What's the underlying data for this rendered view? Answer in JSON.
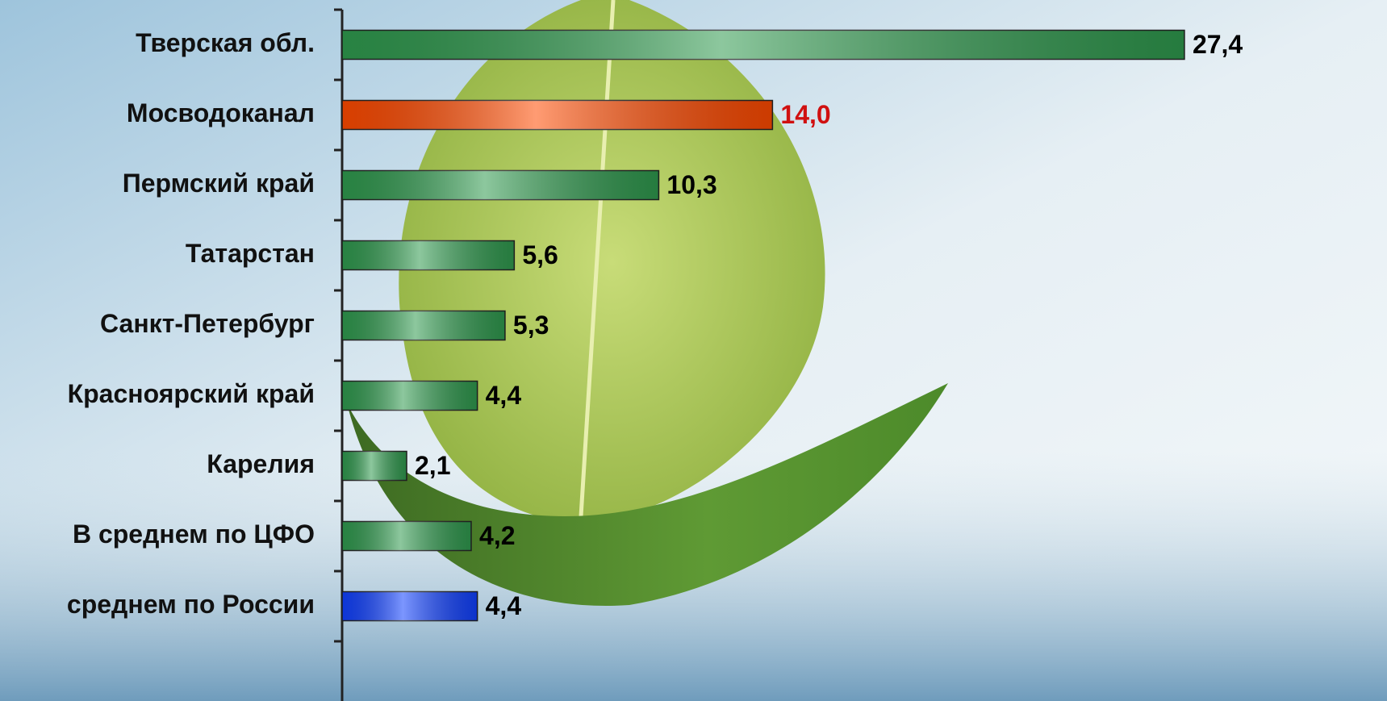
{
  "chart_data": {
    "type": "barh",
    "categories": [
      "Тверская обл.",
      "Мосводоканал",
      "Пермский край",
      "Татарстан",
      "Санкт-Петербург",
      "Красноярский край",
      "Карелия",
      "В среднем по ЦФО",
      "среднем по России"
    ],
    "values": [
      27.4,
      14.0,
      10.3,
      5.6,
      5.3,
      4.4,
      2.1,
      4.2,
      4.4
    ],
    "value_labels": [
      "27,4",
      "14,0",
      "10,3",
      "5,6",
      "5,3",
      "4,4",
      "2,1",
      "4,2",
      "4,4"
    ],
    "colors": [
      "#2f9a4e",
      "#ff4a00",
      "#2f9a4e",
      "#2f9a4e",
      "#2f9a4e",
      "#2f9a4e",
      "#2f9a4e",
      "#2f9a4e",
      "#1040ff"
    ],
    "value_label_colors": [
      "#000000",
      "#d01010",
      "#000000",
      "#000000",
      "#000000",
      "#000000",
      "#000000",
      "#000000",
      "#000000"
    ],
    "xlim": [
      0,
      30
    ]
  }
}
